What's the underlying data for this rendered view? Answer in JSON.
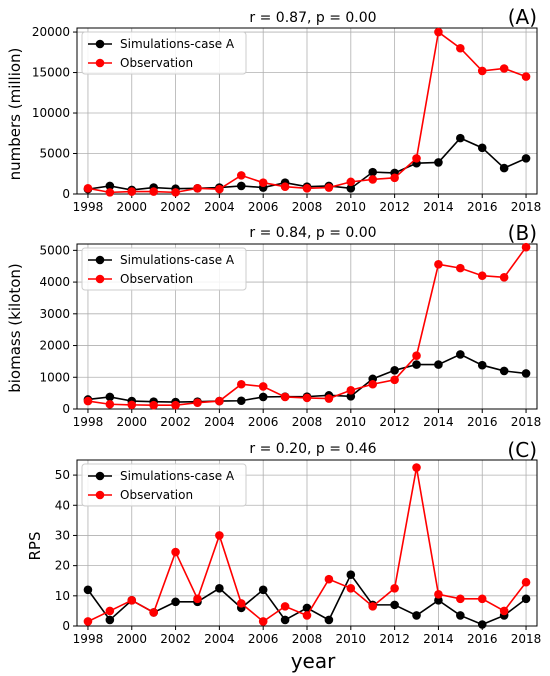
{
  "x_axis_label": "year",
  "chart_data": [
    {
      "type": "line",
      "panel_label": "(A)",
      "title": "r = 0.87, p = 0.00",
      "ylabel": "numbers (million)",
      "xlabel": "",
      "x": [
        1998,
        1999,
        2000,
        2001,
        2002,
        2003,
        2004,
        2005,
        2006,
        2007,
        2008,
        2009,
        2010,
        2011,
        2012,
        2013,
        2014,
        2015,
        2016,
        2017,
        2018
      ],
      "xlim": [
        1997.5,
        2018.5
      ],
      "ylim": [
        0,
        20500
      ],
      "yticks": [
        0,
        5000,
        10000,
        15000,
        20000
      ],
      "xticks": [
        1998,
        2000,
        2002,
        2004,
        2006,
        2008,
        2010,
        2012,
        2014,
        2016,
        2018
      ],
      "grid": true,
      "legend": "top-left",
      "series": [
        {
          "name": "Simulations-case A",
          "color": "#000000",
          "values": [
            600,
            1000,
            500,
            800,
            650,
            700,
            800,
            1000,
            800,
            1400,
            900,
            1000,
            700,
            2700,
            2600,
            3800,
            3900,
            6900,
            5700,
            3200,
            4400
          ]
        },
        {
          "name": "Observation",
          "color": "#ff0000",
          "values": [
            700,
            200,
            300,
            300,
            200,
            700,
            600,
            2300,
            1400,
            900,
            700,
            800,
            1500,
            1800,
            2000,
            4400,
            20000,
            18000,
            15200,
            15500,
            14500
          ]
        }
      ]
    },
    {
      "type": "line",
      "panel_label": "(B)",
      "title": "r = 0.84, p = 0.00",
      "ylabel": "biomass (kiloton)",
      "xlabel": "",
      "x": [
        1998,
        1999,
        2000,
        2001,
        2002,
        2003,
        2004,
        2005,
        2006,
        2007,
        2008,
        2009,
        2010,
        2011,
        2012,
        2013,
        2014,
        2015,
        2016,
        2017,
        2018
      ],
      "xlim": [
        1997.5,
        2018.5
      ],
      "ylim": [
        0,
        5200
      ],
      "yticks": [
        0,
        1000,
        2000,
        3000,
        4000,
        5000
      ],
      "xticks": [
        1998,
        2000,
        2002,
        2004,
        2006,
        2008,
        2010,
        2012,
        2014,
        2016,
        2018
      ],
      "grid": true,
      "legend": "top-left",
      "series": [
        {
          "name": "Simulations-case A",
          "color": "#000000",
          "values": [
            300,
            380,
            250,
            230,
            220,
            230,
            250,
            260,
            380,
            390,
            390,
            430,
            400,
            950,
            1220,
            1400,
            1400,
            1720,
            1380,
            1200,
            1120
          ]
        },
        {
          "name": "Observation",
          "color": "#ff0000",
          "values": [
            250,
            150,
            130,
            120,
            120,
            200,
            250,
            780,
            710,
            380,
            350,
            330,
            590,
            780,
            920,
            1680,
            4560,
            4440,
            4200,
            4150,
            5100
          ]
        }
      ]
    },
    {
      "type": "line",
      "panel_label": "(C)",
      "title": "r = 0.20, p = 0.46",
      "ylabel": "RPS",
      "xlabel": "year",
      "x": [
        1998,
        1999,
        2000,
        2001,
        2002,
        2003,
        2004,
        2005,
        2006,
        2007,
        2008,
        2009,
        2010,
        2011,
        2012,
        2013,
        2014,
        2015,
        2016,
        2017,
        2018
      ],
      "xlim": [
        1997.5,
        2018.5
      ],
      "ylim": [
        0,
        55
      ],
      "yticks": [
        0,
        10,
        20,
        30,
        40,
        50
      ],
      "xticks": [
        1998,
        2000,
        2002,
        2004,
        2006,
        2008,
        2010,
        2012,
        2014,
        2016,
        2018
      ],
      "grid": true,
      "legend": "top-left",
      "series": [
        {
          "name": "Simulations-case A",
          "color": "#000000",
          "values": [
            12,
            2,
            8.5,
            4.5,
            8,
            8,
            12.5,
            6,
            12,
            2,
            6,
            2,
            17,
            7,
            7,
            3.5,
            8.5,
            3.5,
            0.5,
            3.5,
            9
          ]
        },
        {
          "name": "Observation",
          "color": "#ff0000",
          "values": [
            1.5,
            5,
            8.5,
            4.5,
            24.5,
            9,
            30,
            7.5,
            1.5,
            6.5,
            3.5,
            15.5,
            12.5,
            6.5,
            12.5,
            52.5,
            10.5,
            9,
            9,
            5,
            14.5
          ]
        }
      ]
    }
  ]
}
